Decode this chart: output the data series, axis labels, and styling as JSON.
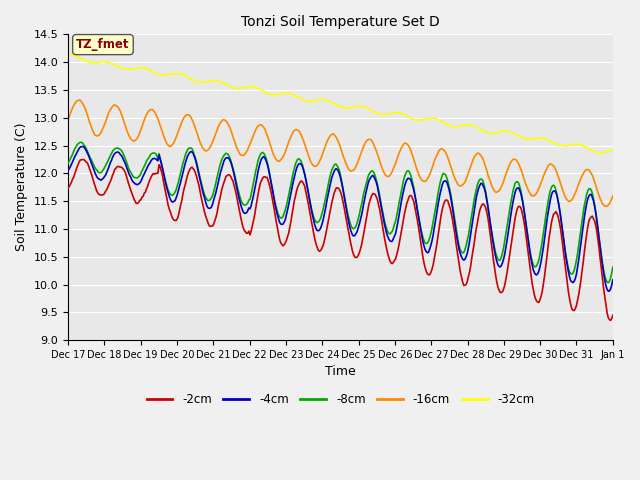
{
  "title": "Tonzi Soil Temperature Set D",
  "xlabel": "Time",
  "ylabel": "Soil Temperature (C)",
  "ylim": [
    9.0,
    14.5
  ],
  "xlim": [
    0,
    15
  ],
  "annotation": "TZ_fmet",
  "fig_facecolor": "#f0f0f0",
  "ax_facecolor": "#e8e8e8",
  "series_colors": {
    "-2cm": "#cc0000",
    "-4cm": "#0000cc",
    "-8cm": "#00aa00",
    "-16cm": "#ff8800",
    "-32cm": "#ffff00"
  },
  "tick_labels": [
    "Dec 17",
    "Dec 18",
    "Dec 19",
    "Dec 20",
    "Dec 21",
    "Dec 22",
    "Dec 23",
    "Dec 24",
    "Dec 25",
    "Dec 26",
    "Dec 27",
    "Dec 28",
    "Dec 29",
    "Dec 30",
    "Dec 31",
    "Jan 1"
  ],
  "yticks": [
    9.0,
    9.5,
    10.0,
    10.5,
    11.0,
    11.5,
    12.0,
    12.5,
    13.0,
    13.5,
    14.0,
    14.5
  ],
  "n_points": 480,
  "n_days": 15
}
